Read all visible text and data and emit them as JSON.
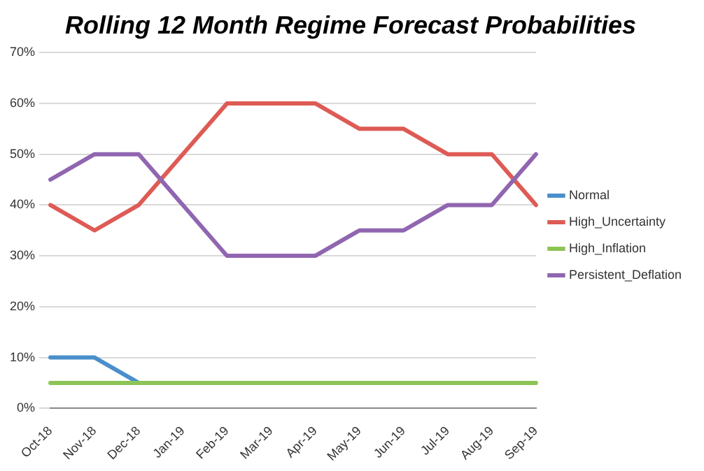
{
  "chart_data": {
    "type": "line",
    "title": "Rolling 12 Month Regime Forecast Probabilities",
    "categories": [
      "Oct-18",
      "Nov-18",
      "Dec-18",
      "Jan-19",
      "Feb-19",
      "Mar-19",
      "Apr-19",
      "May-19",
      "Jun-19",
      "Jul-19",
      "Aug-19",
      "Sep-19"
    ],
    "series": [
      {
        "name": "Normal",
        "color": "#4a8fcb",
        "values": [
          10,
          10,
          5,
          null,
          null,
          null,
          null,
          null,
          null,
          null,
          null,
          null
        ]
      },
      {
        "name": "High_Uncertainty",
        "color": "#de5b55",
        "values": [
          40,
          35,
          40,
          50,
          60,
          60,
          60,
          55,
          55,
          50,
          50,
          40
        ]
      },
      {
        "name": "High_Inflation",
        "color": "#8dc456",
        "values": [
          5,
          5,
          5,
          5,
          5,
          5,
          5,
          5,
          5,
          5,
          5,
          5
        ]
      },
      {
        "name": "Persistent_Deflation",
        "color": "#9066b0",
        "values": [
          45,
          50,
          50,
          40,
          30,
          30,
          30,
          35,
          35,
          40,
          40,
          50
        ]
      }
    ],
    "ylim": [
      0,
      70
    ],
    "yticks": [
      {
        "value": 0,
        "label": "0%"
      },
      {
        "value": 10,
        "label": "10%"
      },
      {
        "value": 20,
        "label": "20%"
      },
      {
        "value": 30,
        "label": "30%"
      },
      {
        "value": 40,
        "label": "40%"
      },
      {
        "value": 50,
        "label": "50%"
      },
      {
        "value": 60,
        "label": "60%"
      },
      {
        "value": 70,
        "label": "70%"
      }
    ],
    "grid": "y",
    "legend": "right",
    "marker": "none",
    "line_style": "solid"
  }
}
